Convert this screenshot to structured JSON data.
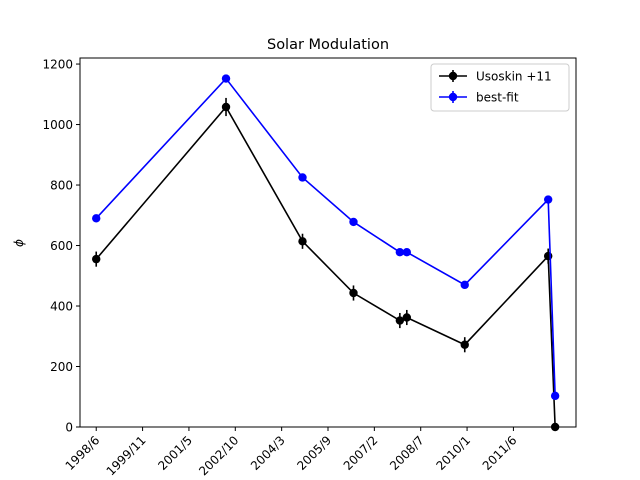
{
  "chart_data": {
    "type": "line",
    "title": "Solar Modulation",
    "xlabel": "",
    "ylabel": "ϕ",
    "ylim": [
      0,
      1220
    ],
    "yticks": [
      0,
      200,
      400,
      600,
      800,
      1000,
      1200
    ],
    "xticks": [
      "1998/6",
      "1999/11",
      "2001/5",
      "2002/10",
      "2004/3",
      "2005/9",
      "2007/2",
      "2008/7",
      "2010/1",
      "2011/6"
    ],
    "xtick_positions": [
      0,
      1,
      2,
      3,
      4,
      5,
      6,
      7,
      8,
      9
    ],
    "xlim": [
      -0.35,
      10.35
    ],
    "legend": "top-right",
    "series": [
      {
        "name": "Usoskin +11",
        "color": "#000000",
        "x": [
          0,
          2.8,
          4.45,
          5.55,
          6.55,
          6.7,
          7.95,
          9.75,
          9.9
        ],
        "y": [
          555,
          1058,
          614,
          443,
          352,
          362,
          272,
          565,
          0
        ],
        "yerr": [
          25,
          30,
          25,
          25,
          25,
          25,
          25,
          25,
          0
        ]
      },
      {
        "name": "best-fit",
        "color": "#0000ff",
        "x": [
          0,
          2.8,
          4.45,
          5.55,
          6.55,
          6.7,
          7.95,
          9.75,
          9.9
        ],
        "y": [
          690,
          1152,
          825,
          678,
          578,
          578,
          470,
          752,
          103
        ],
        "yerr": [
          0,
          0,
          0,
          0,
          0,
          0,
          0,
          0,
          0
        ]
      }
    ]
  }
}
